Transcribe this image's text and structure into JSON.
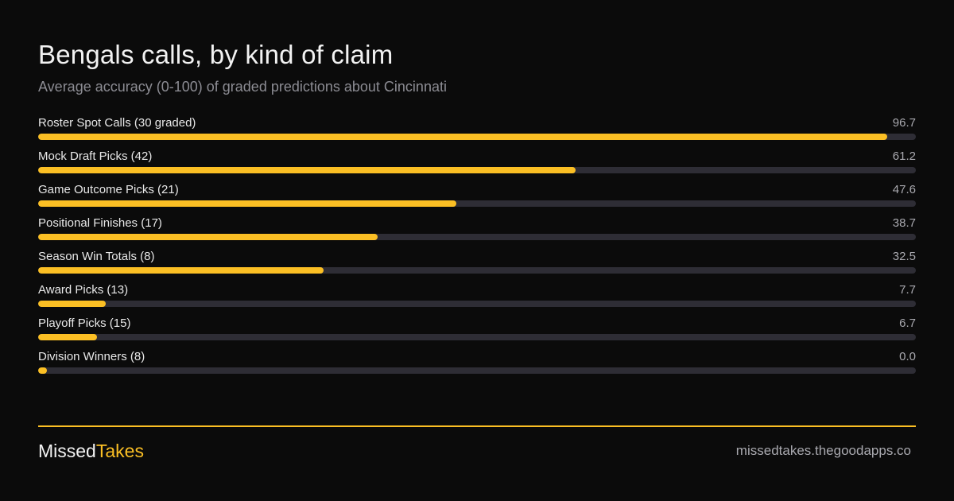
{
  "colors": {
    "accent": "#fbbf24",
    "track": "#2e2d35",
    "background": "#0b0b0b"
  },
  "chart_data": {
    "type": "bar",
    "orientation": "horizontal",
    "title": "Bengals calls, by kind of claim",
    "subtitle": "Average accuracy (0-100) of graded predictions about Cincinnati",
    "xlim": [
      0,
      100
    ],
    "categories": [
      "Roster Spot Calls (30 graded)",
      "Mock Draft Picks (42)",
      "Game Outcome Picks (21)",
      "Positional Finishes (17)",
      "Season Win Totals (8)",
      "Award Picks (13)",
      "Playoff Picks (15)",
      "Division Winners (8)"
    ],
    "values": [
      96.7,
      61.2,
      47.6,
      38.7,
      32.5,
      7.7,
      6.7,
      0.0
    ],
    "value_labels": [
      "96.7",
      "61.2",
      "47.6",
      "38.7",
      "32.5",
      "7.7",
      "6.7",
      "0.0"
    ]
  },
  "footer": {
    "brand_part1": "Missed",
    "brand_part2": "Takes",
    "site": "missedtakes.thegoodapps.co"
  }
}
